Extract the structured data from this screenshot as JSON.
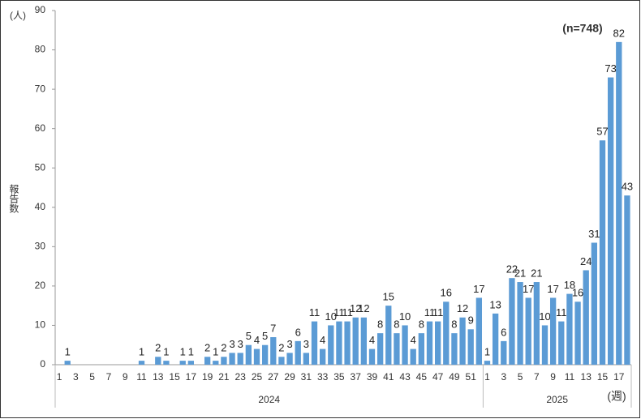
{
  "chart_data": {
    "type": "bar",
    "color": "#5b9bd5",
    "y_unit": "(人)",
    "y_label": "報告数",
    "x_unit": "(週)",
    "annotation": "(n=748)",
    "ylim": [
      0,
      90
    ],
    "yticks": [
      0,
      10,
      20,
      30,
      40,
      50,
      60,
      70,
      80,
      90
    ],
    "groups": [
      {
        "label": "2024",
        "categories": [
          "1",
          null,
          "3",
          null,
          "5",
          null,
          "7",
          null,
          "9",
          null,
          "11",
          null,
          "13",
          null,
          "15",
          null,
          "17",
          null,
          "19",
          null,
          "21",
          null,
          "23",
          null,
          "25",
          null,
          "27",
          null,
          "29",
          null,
          "31",
          null,
          "33",
          null,
          "35",
          null,
          "37",
          null,
          "39",
          null,
          "41",
          null,
          "43",
          null,
          "45",
          null,
          "47",
          null,
          "49",
          null,
          "51",
          null
        ],
        "values": [
          0,
          1,
          0,
          0,
          0,
          0,
          0,
          0,
          0,
          0,
          1,
          0,
          2,
          1,
          0,
          1,
          1,
          0,
          2,
          1,
          2,
          3,
          3,
          5,
          4,
          5,
          7,
          2,
          3,
          6,
          3,
          11,
          4,
          10,
          11,
          11,
          12,
          12,
          4,
          8,
          15,
          8,
          10,
          4,
          8,
          11,
          11,
          16,
          8,
          12,
          9,
          17
        ]
      },
      {
        "label": "2025",
        "categories": [
          "1",
          null,
          "3",
          null,
          "5",
          null,
          "7",
          null,
          "9",
          null,
          "11",
          null,
          "13",
          null,
          "15",
          null,
          "17",
          null
        ],
        "values": [
          1,
          13,
          6,
          22,
          21,
          17,
          21,
          10,
          17,
          11,
          18,
          16,
          24,
          31,
          57,
          73,
          82,
          43
        ]
      }
    ]
  }
}
